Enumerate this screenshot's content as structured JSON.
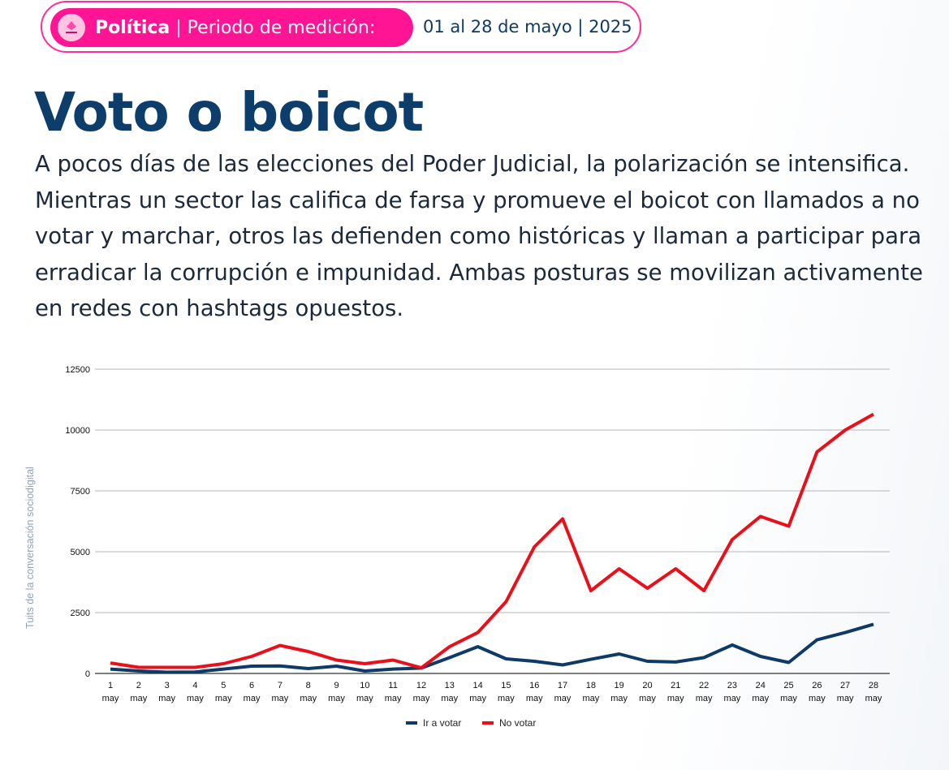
{
  "header": {
    "category": "Política",
    "separator": " | ",
    "period_label": "Periodo de medición:",
    "period_value": "01 al 28 de mayo | 2025",
    "icon": "ballot-box-icon"
  },
  "title": "Voto o boicot",
  "description": "A pocos días de las elecciones del Poder Judicial, la polarización se intensifica. Mientras un sector las califica de farsa y promueve el boicot con llamados a no votar y marchar, otros las defienden como históricas y llaman a participar para erradicar la corrupción e impunidad. Ambas posturas se movilizan activamente en redes con hashtags opuestos.",
  "chart_data": {
    "type": "line",
    "title": "",
    "xlabel": "",
    "ylabel": "Tuits de la conversación sociodigital",
    "ylim": [
      0,
      12500
    ],
    "yticks": [
      "0",
      "2500",
      "5000",
      "7500",
      "10000",
      "12500"
    ],
    "grid": true,
    "legend": "bottom",
    "x_day": [
      "1",
      "2",
      "3",
      "4",
      "5",
      "6",
      "7",
      "8",
      "9",
      "10",
      "11",
      "12",
      "13",
      "14",
      "15",
      "16",
      "17",
      "18",
      "19",
      "20",
      "21",
      "22",
      "23",
      "24",
      "25",
      "26",
      "27",
      "28"
    ],
    "x_month": "may",
    "series": [
      {
        "name": "Ir a votar",
        "color": "#0d3a66",
        "values": [
          180,
          100,
          50,
          60,
          180,
          300,
          310,
          200,
          300,
          100,
          180,
          220,
          650,
          1100,
          600,
          500,
          350,
          580,
          800,
          500,
          470,
          650,
          1170,
          700,
          450,
          1380,
          1680,
          2020
        ]
      },
      {
        "name": "No votar",
        "color": "#e8101a",
        "values": [
          430,
          250,
          250,
          250,
          400,
          700,
          1150,
          900,
          550,
          400,
          550,
          230,
          1100,
          1680,
          2950,
          5200,
          6350,
          3400,
          4300,
          3500,
          4300,
          3400,
          5500,
          6450,
          6050,
          9100,
          10000,
          10650
        ]
      }
    ]
  }
}
